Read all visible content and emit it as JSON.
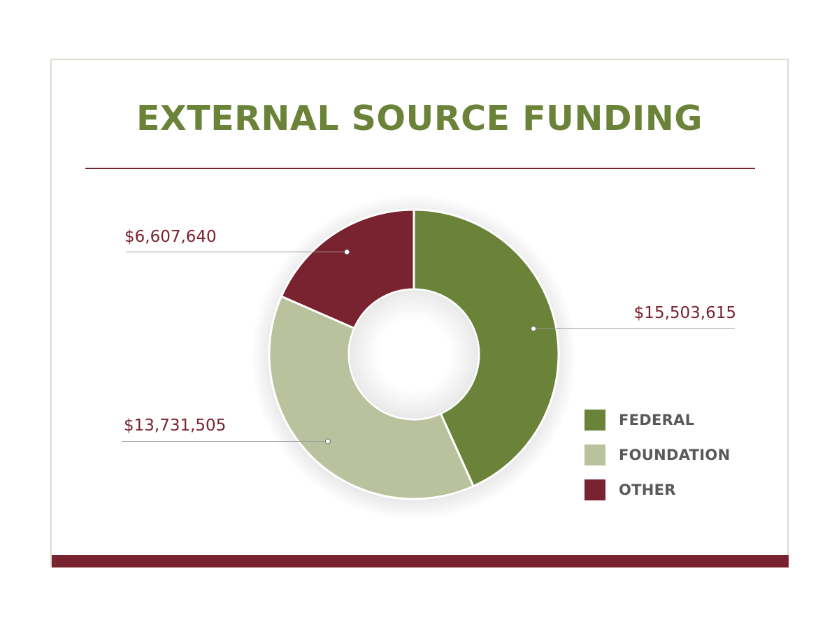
{
  "chart_data": {
    "type": "pie",
    "subtype": "donut",
    "title": "EXTERNAL SOURCE FUNDING",
    "slices": [
      {
        "name": "FEDERAL",
        "value": 15503615,
        "label": "$15,503,615",
        "color": "#6a8339"
      },
      {
        "name": "FOUNDATION",
        "value": 13731505,
        "label": "$13,731,505",
        "color": "#b9c29c"
      },
      {
        "name": "OTHER",
        "value": 6607640,
        "label": "$6,607,640",
        "color": "#7a2330"
      }
    ],
    "legend_position": "bottom-right"
  },
  "colors": {
    "title": "#6a8339",
    "accent": "#7a2330",
    "legend_text": "#58595b",
    "leader_line": "#9a9a9a"
  }
}
